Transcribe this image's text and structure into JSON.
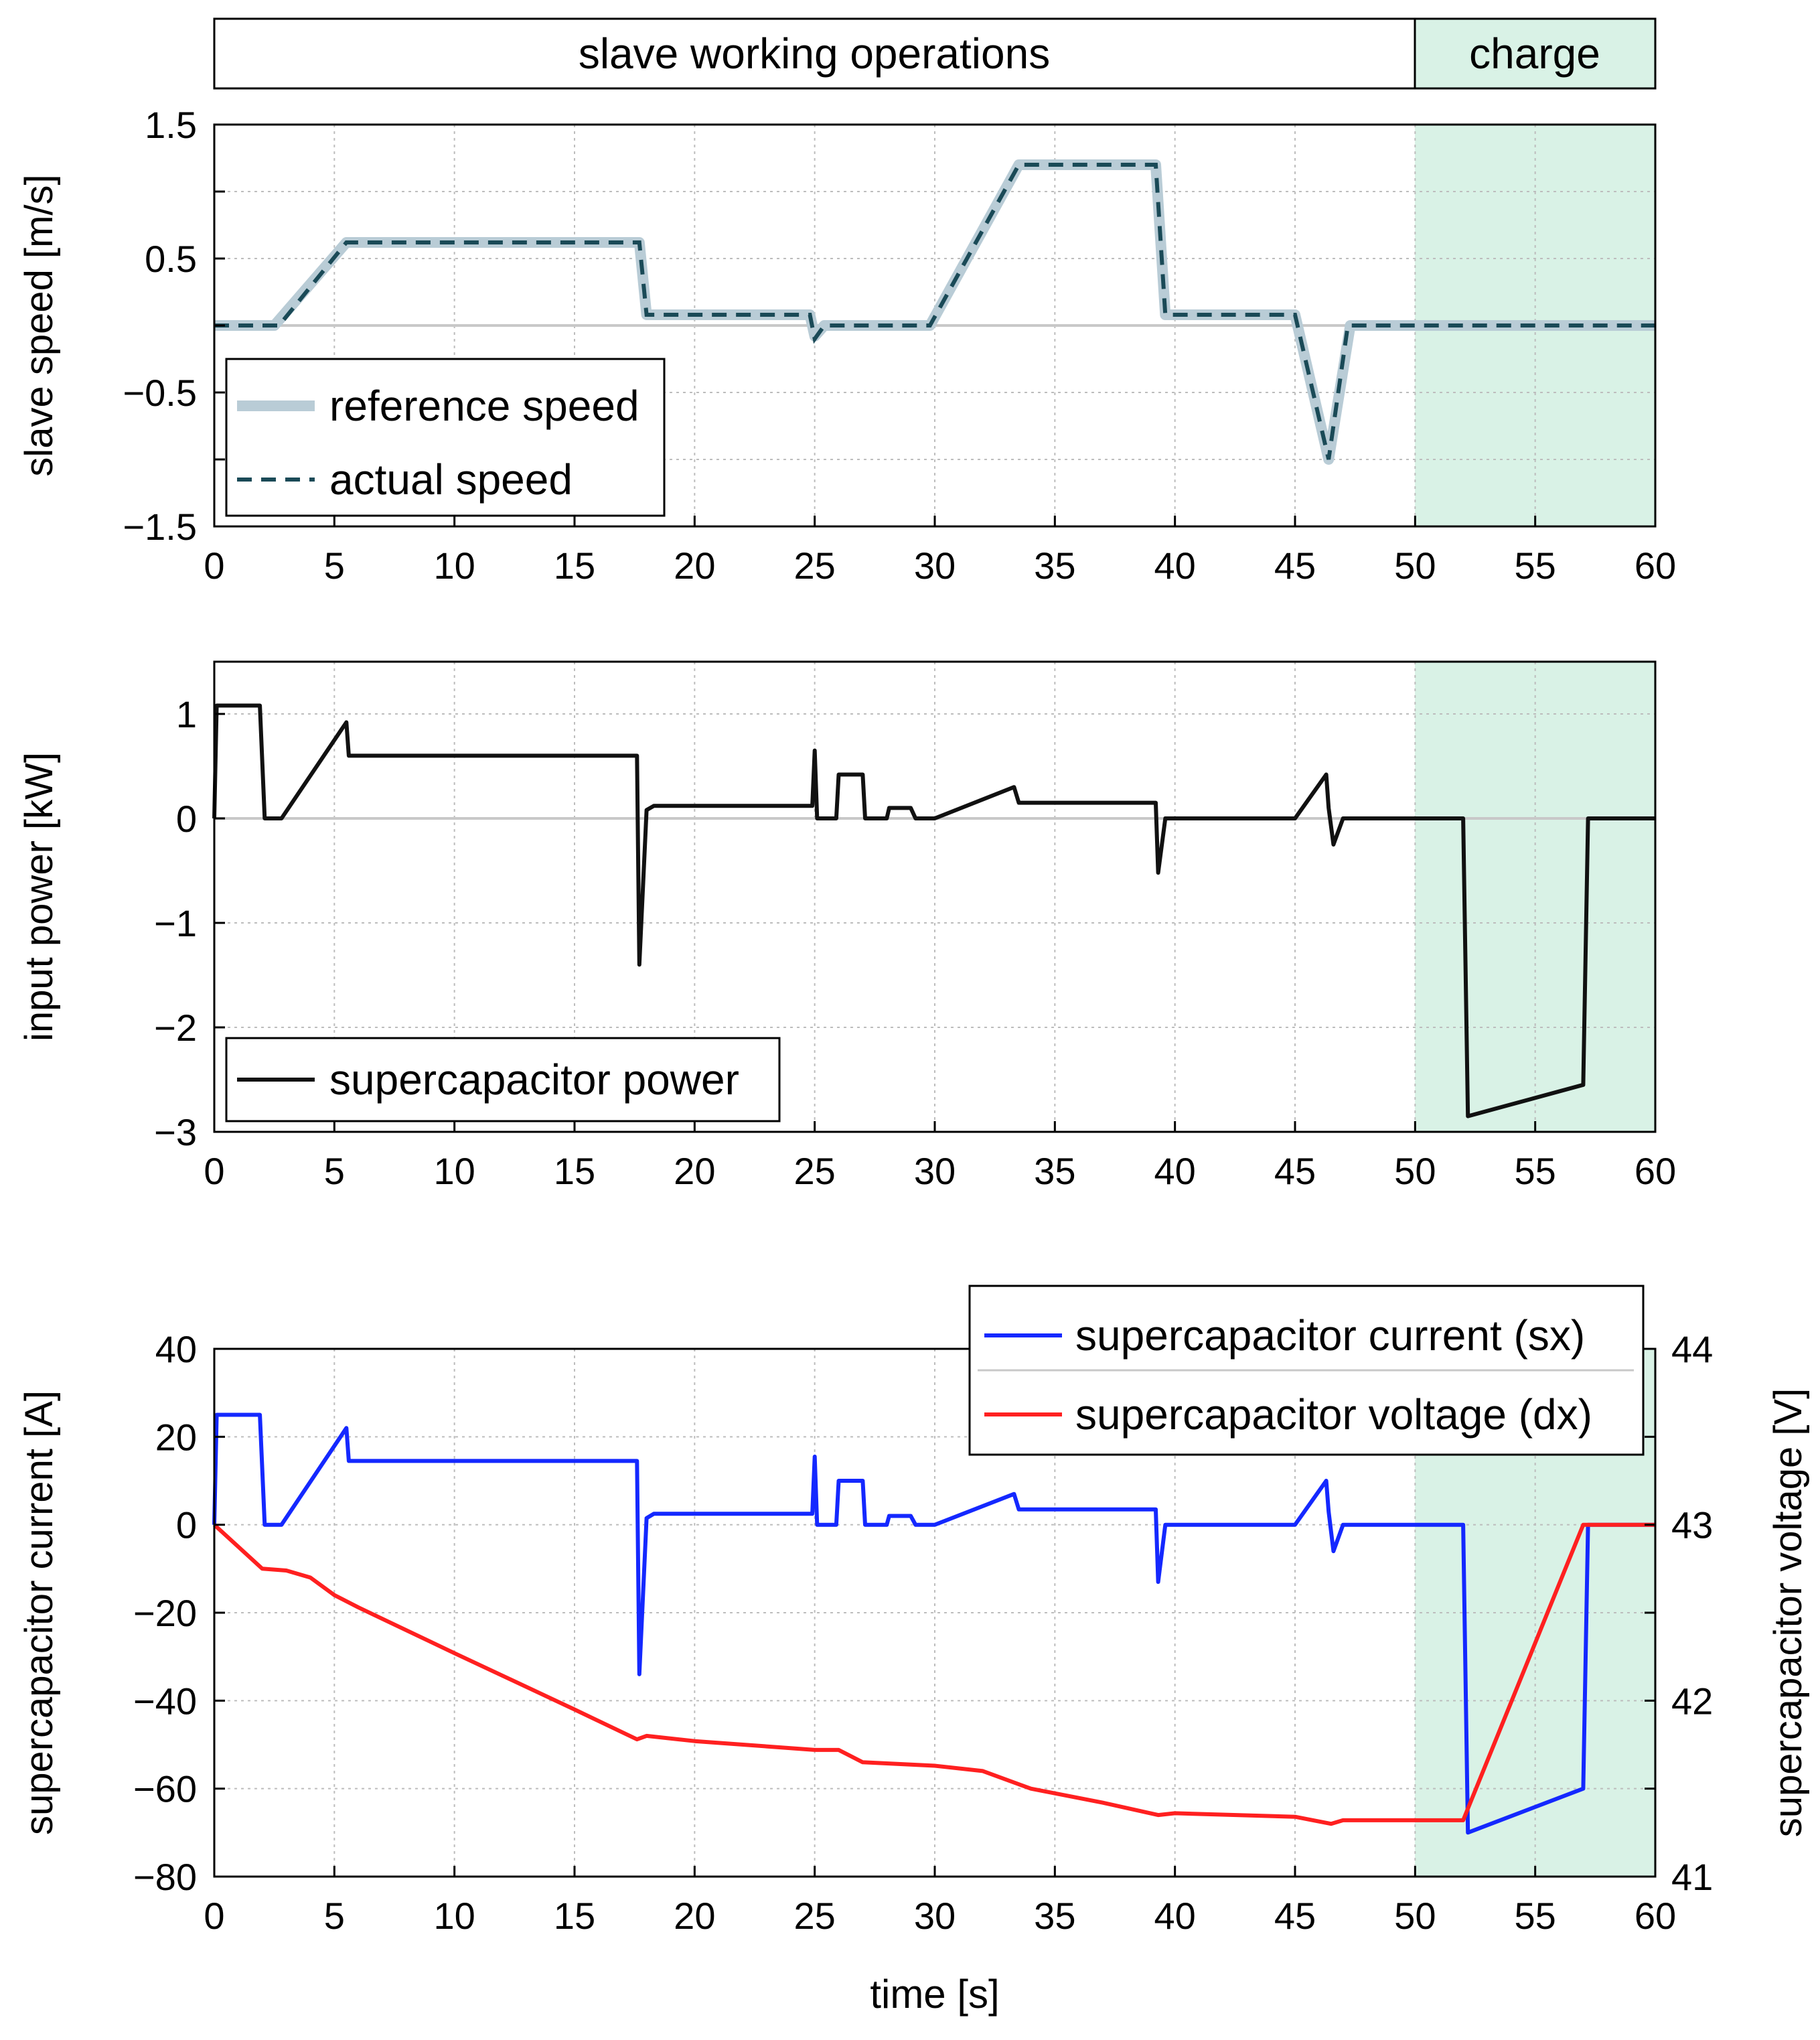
{
  "colors": {
    "charge_bg": "#d9f2e6",
    "reference": "#b9ccd6",
    "actual": "#1a4a57",
    "power": "#111111",
    "current": "#1428ff",
    "voltage": "#ff2020",
    "zero_line": "#c8c8c8"
  },
  "phase_bar": {
    "working_label": "slave working operations",
    "charge_label": "charge",
    "working_range": [
      0,
      50
    ],
    "charge_range": [
      50,
      60
    ]
  },
  "chart_data": [
    {
      "type": "line",
      "ylabel": "slave speed [m/s]",
      "xlim": [
        0,
        60
      ],
      "ylim": [
        -1.5,
        1.5
      ],
      "x_ticks": [
        "0",
        "5",
        "10",
        "15",
        "20",
        "25",
        "30",
        "35",
        "40",
        "45",
        "50",
        "55",
        "60"
      ],
      "y_ticks": [
        {
          "value": 1.5,
          "label": "1.5"
        },
        {
          "value": 0.5,
          "label": "0.5"
        },
        {
          "value": -0.5,
          "label": "−0.5"
        },
        {
          "value": -1.5,
          "label": "−1.5"
        }
      ],
      "charge_region": [
        50,
        60
      ],
      "series": [
        {
          "name": "reference speed",
          "points": [
            [
              0,
              0
            ],
            [
              2.5,
              0
            ],
            [
              5.5,
              0.62
            ],
            [
              17.7,
              0.62
            ],
            [
              18,
              0.08
            ],
            [
              24.8,
              0.08
            ],
            [
              25,
              -0.08
            ],
            [
              25.4,
              0
            ],
            [
              29.8,
              0
            ],
            [
              33.5,
              1.2
            ],
            [
              39.2,
              1.2
            ],
            [
              39.6,
              0.08
            ],
            [
              45,
              0.08
            ],
            [
              46.4,
              -1
            ],
            [
              47.3,
              0
            ],
            [
              60,
              0
            ]
          ]
        },
        {
          "name": "actual speed",
          "points": [
            [
              0,
              0
            ],
            [
              2.7,
              0
            ],
            [
              5.5,
              0.62
            ],
            [
              17.7,
              0.62
            ],
            [
              18,
              0.08
            ],
            [
              24.8,
              0.08
            ],
            [
              25,
              -0.1
            ],
            [
              25.4,
              0
            ],
            [
              29.8,
              0
            ],
            [
              33.5,
              1.2
            ],
            [
              39.2,
              1.2
            ],
            [
              39.6,
              0.08
            ],
            [
              45,
              0.08
            ],
            [
              46.4,
              -1
            ],
            [
              47.2,
              0
            ],
            [
              60,
              0
            ]
          ]
        }
      ]
    },
    {
      "type": "line",
      "ylabel": "input power [kW]",
      "xlim": [
        0,
        60
      ],
      "ylim": [
        -3,
        1.5
      ],
      "x_ticks": [
        "0",
        "5",
        "10",
        "15",
        "20",
        "25",
        "30",
        "35",
        "40",
        "45",
        "50",
        "55",
        "60"
      ],
      "y_ticks": [
        {
          "value": 1,
          "label": "1"
        },
        {
          "value": 0,
          "label": "0"
        },
        {
          "value": -1,
          "label": "−1"
        },
        {
          "value": -2,
          "label": "−2"
        },
        {
          "value": -3,
          "label": "−3"
        }
      ],
      "charge_region": [
        50,
        60
      ],
      "series": [
        {
          "name": "supercapacitor power",
          "points": [
            [
              0,
              0
            ],
            [
              0.1,
              1.08
            ],
            [
              1.9,
              1.08
            ],
            [
              2.1,
              0
            ],
            [
              2.8,
              0
            ],
            [
              5.5,
              0.92
            ],
            [
              5.6,
              0.6
            ],
            [
              17.6,
              0.6
            ],
            [
              17.7,
              -1.4
            ],
            [
              18,
              0.08
            ],
            [
              18.3,
              0.12
            ],
            [
              24.9,
              0.12
            ],
            [
              25,
              0.65
            ],
            [
              25.1,
              0
            ],
            [
              25.9,
              0
            ],
            [
              26,
              0.42
            ],
            [
              27,
              0.42
            ],
            [
              27.1,
              0
            ],
            [
              28,
              0
            ],
            [
              28.1,
              0.1
            ],
            [
              29,
              0.1
            ],
            [
              29.2,
              0
            ],
            [
              30,
              0
            ],
            [
              33.3,
              0.3
            ],
            [
              33.5,
              0.15
            ],
            [
              39.2,
              0.15
            ],
            [
              39.3,
              -0.52
            ],
            [
              39.6,
              0
            ],
            [
              45,
              0
            ],
            [
              46.3,
              0.42
            ],
            [
              46.4,
              0.1
            ],
            [
              46.6,
              -0.25
            ],
            [
              47,
              0
            ],
            [
              50,
              0
            ],
            [
              52,
              0
            ],
            [
              52.2,
              -2.85
            ],
            [
              57,
              -2.55
            ],
            [
              57.2,
              0
            ],
            [
              60,
              0
            ]
          ]
        }
      ]
    },
    {
      "type": "line",
      "xlabel": "time [s]",
      "ylabel": "supercapacitor current [A]",
      "ylabel_right": "supercapacitor voltage [V]",
      "xlim": [
        0,
        60
      ],
      "ylim": [
        -80,
        40
      ],
      "ylim_right": [
        41,
        44
      ],
      "x_ticks": [
        "0",
        "5",
        "10",
        "15",
        "20",
        "25",
        "30",
        "35",
        "40",
        "45",
        "50",
        "55",
        "60"
      ],
      "y_ticks": [
        {
          "value": 40,
          "label": "40"
        },
        {
          "value": 20,
          "label": "20"
        },
        {
          "value": 0,
          "label": "0"
        },
        {
          "value": -20,
          "label": "−20"
        },
        {
          "value": -40,
          "label": "−40"
        },
        {
          "value": -60,
          "label": "−60"
        },
        {
          "value": -80,
          "label": "−80"
        }
      ],
      "y_ticks_right": [
        {
          "value": 44,
          "label": "44"
        },
        {
          "value": 43,
          "label": "43"
        },
        {
          "value": 42,
          "label": "42"
        },
        {
          "value": 41,
          "label": "41"
        }
      ],
      "charge_region": [
        50,
        60
      ],
      "series": [
        {
          "name": "supercapacitor current (sx)",
          "axis": "left",
          "points": [
            [
              0,
              0
            ],
            [
              0.1,
              25
            ],
            [
              1.9,
              25
            ],
            [
              2.1,
              0
            ],
            [
              2.8,
              0
            ],
            [
              5.5,
              22
            ],
            [
              5.6,
              14.5
            ],
            [
              17.6,
              14.5
            ],
            [
              17.7,
              -34
            ],
            [
              18,
              1.5
            ],
            [
              18.3,
              2.5
            ],
            [
              24.9,
              2.5
            ],
            [
              25,
              15.5
            ],
            [
              25.1,
              0
            ],
            [
              25.9,
              0
            ],
            [
              26,
              10
            ],
            [
              27,
              10
            ],
            [
              27.1,
              0
            ],
            [
              28,
              0
            ],
            [
              28.1,
              2
            ],
            [
              29,
              2
            ],
            [
              29.2,
              0
            ],
            [
              30,
              0
            ],
            [
              33.3,
              7
            ],
            [
              33.5,
              3.5
            ],
            [
              39.2,
              3.5
            ],
            [
              39.3,
              -13
            ],
            [
              39.6,
              0
            ],
            [
              45,
              0
            ],
            [
              46.3,
              10
            ],
            [
              46.4,
              3
            ],
            [
              46.6,
              -6
            ],
            [
              47,
              0
            ],
            [
              50,
              0
            ],
            [
              52,
              0
            ],
            [
              52.2,
              -70
            ],
            [
              57,
              -60
            ],
            [
              57.2,
              0
            ],
            [
              60,
              0
            ]
          ]
        },
        {
          "name": "supercapacitor voltage (dx)",
          "axis": "right",
          "points": [
            [
              0,
              43
            ],
            [
              2,
              42.75
            ],
            [
              3,
              42.74
            ],
            [
              4,
              42.7
            ],
            [
              5,
              42.6
            ],
            [
              6,
              42.53
            ],
            [
              10,
              42.27
            ],
            [
              15,
              41.95
            ],
            [
              17.6,
              41.78
            ],
            [
              18,
              41.8
            ],
            [
              20,
              41.77
            ],
            [
              25,
              41.72
            ],
            [
              26,
              41.72
            ],
            [
              27,
              41.65
            ],
            [
              30,
              41.63
            ],
            [
              32,
              41.6
            ],
            [
              34,
              41.5
            ],
            [
              37,
              41.42
            ],
            [
              39.3,
              41.35
            ],
            [
              40,
              41.36
            ],
            [
              45,
              41.34
            ],
            [
              46.5,
              41.3
            ],
            [
              47,
              41.32
            ],
            [
              52,
              41.32
            ],
            [
              57,
              43
            ],
            [
              60,
              43
            ]
          ]
        }
      ]
    }
  ]
}
